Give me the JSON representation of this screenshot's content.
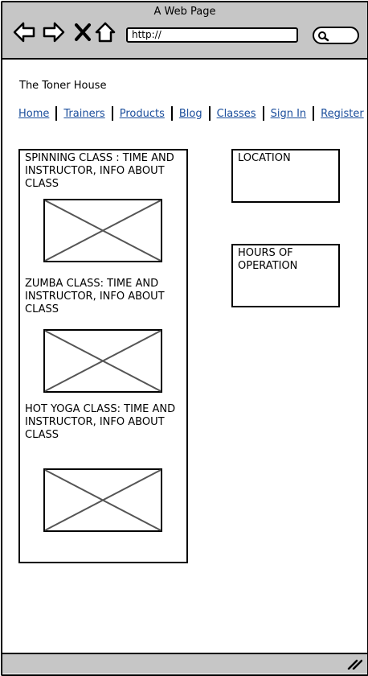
{
  "browser": {
    "window_title": "A Web Page",
    "url": "http://"
  },
  "site": {
    "title": "The Toner House"
  },
  "nav": {
    "items": [
      "Home",
      "Trainers",
      "Products",
      "Blog",
      "Classes",
      "Sign In",
      "Register"
    ]
  },
  "classes": [
    {
      "text": "SPINNING CLASS : TIME AND\nINSTRUCTOR, INFO ABOUT\nCLASS"
    },
    {
      "text": " ZUMBA CLASS: TIME AND\nINSTRUCTOR, INFO ABOUT\nCLASS"
    },
    {
      "text": "HOT YOGA CLASS: TIME AND\nINSTRUCTOR, INFO ABOUT\nCLASS"
    }
  ],
  "sidebar": {
    "location": "LOCATION",
    "hours": "HOURS OF\nOPERATION"
  },
  "colors": {
    "chrome": "#c6c6c6",
    "link": "#1b4e9c"
  }
}
